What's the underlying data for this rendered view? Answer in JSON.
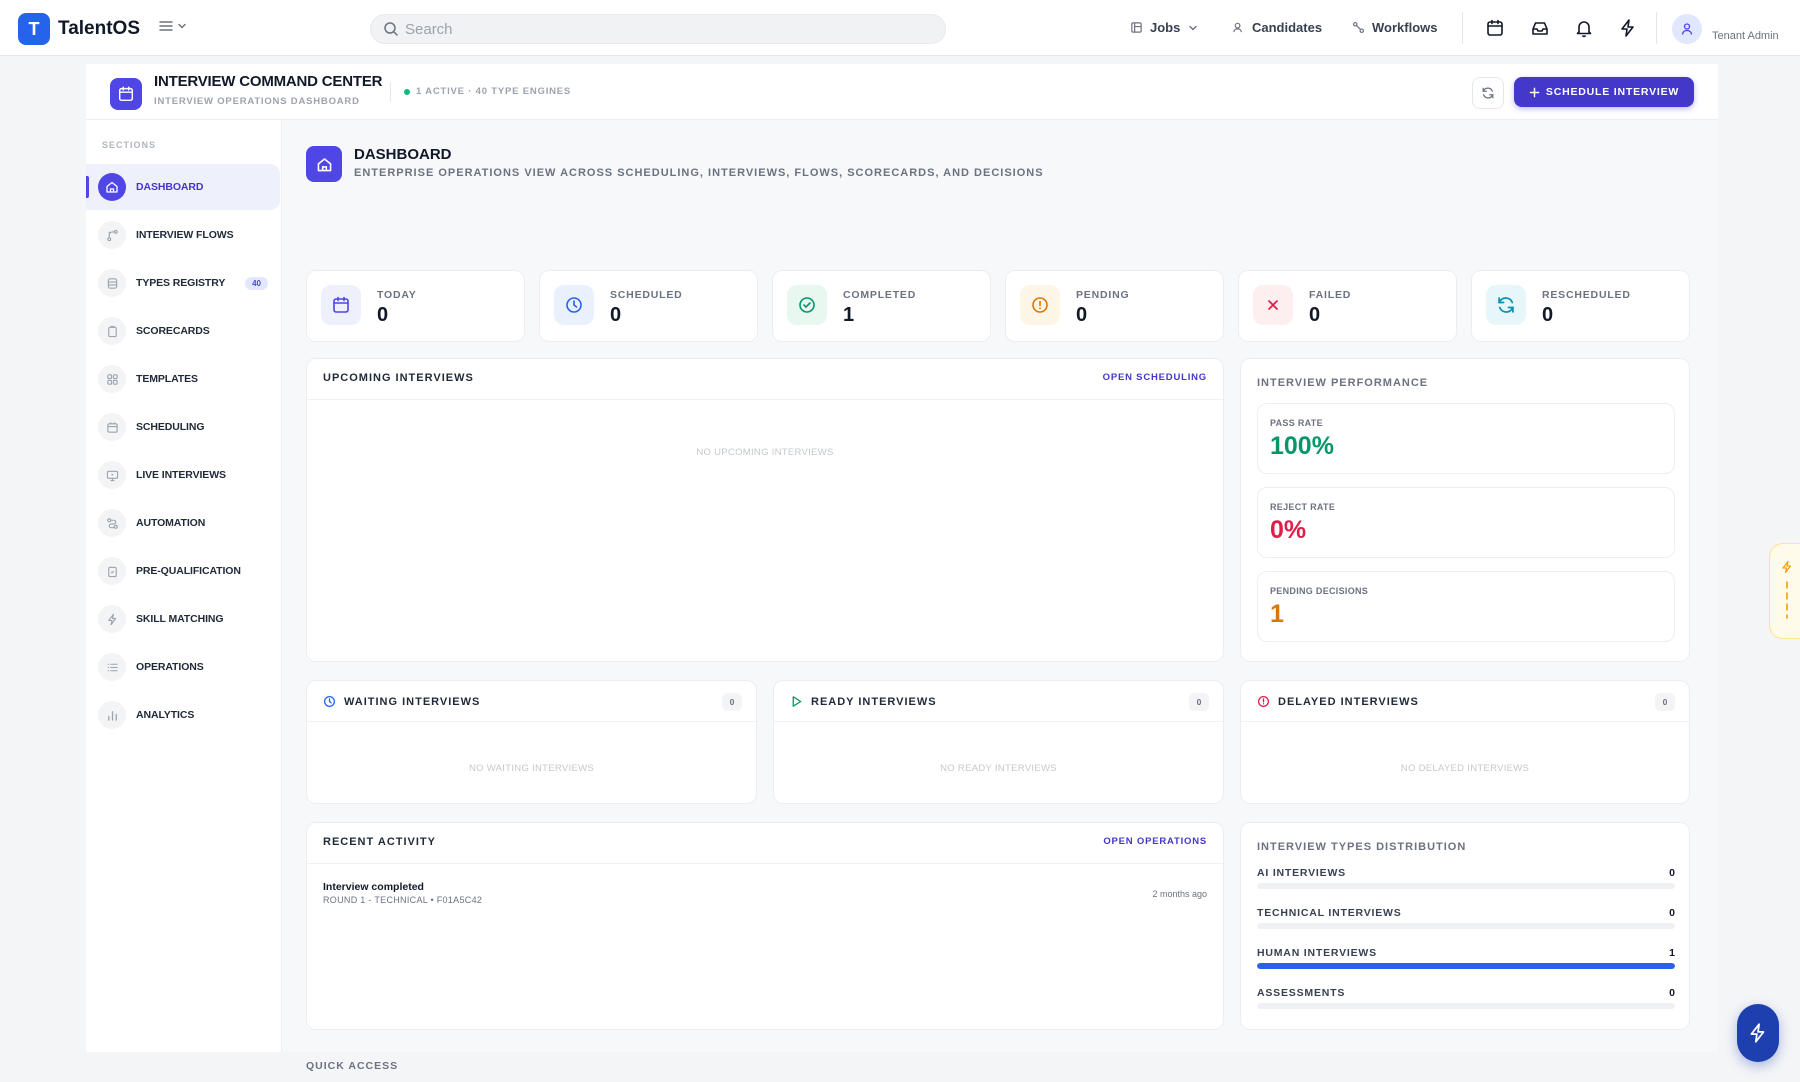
{
  "app": {
    "logo_letter": "T",
    "name": "TalentOS"
  },
  "search": {
    "placeholder": "Search"
  },
  "nav": {
    "jobs": "Jobs",
    "candidates": "Candidates",
    "workflows": "Workflows"
  },
  "user": {
    "name": "Tenant Admin"
  },
  "header": {
    "title": "INTERVIEW COMMAND CENTER",
    "subtitle": "INTERVIEW OPERATIONS DASHBOARD",
    "status": "1 ACTIVE · 40 TYPE ENGINES",
    "primary_button": "SCHEDULE INTERVIEW"
  },
  "sidebar": {
    "section_label": "SECTIONS",
    "items": [
      {
        "label": "DASHBOARD",
        "icon": "home-icon"
      },
      {
        "label": "INTERVIEW FLOWS",
        "icon": "flow-icon"
      },
      {
        "label": "TYPES REGISTRY",
        "icon": "database-icon",
        "badge": "40"
      },
      {
        "label": "SCORECARDS",
        "icon": "clipboard-icon"
      },
      {
        "label": "TEMPLATES",
        "icon": "grid-icon"
      },
      {
        "label": "SCHEDULING",
        "icon": "calendar-icon"
      },
      {
        "label": "LIVE INTERVIEWS",
        "icon": "monitor-icon"
      },
      {
        "label": "AUTOMATION",
        "icon": "route-icon"
      },
      {
        "label": "PRE-QUALIFICATION",
        "icon": "clipboard-check-icon"
      },
      {
        "label": "SKILL MATCHING",
        "icon": "bolt-icon"
      },
      {
        "label": "OPERATIONS",
        "icon": "list-icon"
      },
      {
        "label": "ANALYTICS",
        "icon": "bar-chart-icon"
      }
    ]
  },
  "dashboard": {
    "title": "DASHBOARD",
    "subtitle": "ENTERPRISE OPERATIONS VIEW ACROSS SCHEDULING, INTERVIEWS, FLOWS, SCORECARDS, AND DECISIONS"
  },
  "stats": [
    {
      "label": "TODAY",
      "value": "0",
      "icon": "calendar-icon",
      "color": "#4f46e5",
      "bg": "#eef0fb"
    },
    {
      "label": "SCHEDULED",
      "value": "0",
      "icon": "clock-icon",
      "color": "#2563eb",
      "bg": "#eaf1fe"
    },
    {
      "label": "COMPLETED",
      "value": "1",
      "icon": "check-circle-icon",
      "color": "#059669",
      "bg": "#e8f7f0"
    },
    {
      "label": "PENDING",
      "value": "0",
      "icon": "alert-circle-icon",
      "color": "#d97706",
      "bg": "#fdf5e6"
    },
    {
      "label": "FAILED",
      "value": "0",
      "icon": "x-icon",
      "color": "#e11d48",
      "bg": "#fdeef0"
    },
    {
      "label": "RESCHEDULED",
      "value": "0",
      "icon": "refresh-icon",
      "color": "#0891b2",
      "bg": "#e7f6f9"
    }
  ],
  "upcoming": {
    "title": "UPCOMING INTERVIEWS",
    "link": "OPEN SCHEDULING",
    "empty": "NO UPCOMING INTERVIEWS"
  },
  "performance": {
    "title": "INTERVIEW PERFORMANCE",
    "metrics": [
      {
        "label": "PASS RATE",
        "value": "100%",
        "color": "#059669"
      },
      {
        "label": "REJECT RATE",
        "value": "0%",
        "color": "#e11d48"
      },
      {
        "label": "PENDING DECISIONS",
        "value": "1",
        "color": "#d97706"
      }
    ]
  },
  "queues": [
    {
      "title": "WAITING INTERVIEWS",
      "count": "0",
      "empty": "NO WAITING INTERVIEWS",
      "icon": "clock-icon",
      "color": "#2563eb"
    },
    {
      "title": "READY INTERVIEWS",
      "count": "0",
      "empty": "NO READY INTERVIEWS",
      "icon": "play-icon",
      "color": "#059669"
    },
    {
      "title": "DELAYED INTERVIEWS",
      "count": "0",
      "empty": "NO DELAYED INTERVIEWS",
      "icon": "alert-circle-icon",
      "color": "#e11d48"
    }
  ],
  "activity": {
    "title": "RECENT ACTIVITY",
    "link": "OPEN OPERATIONS",
    "items": [
      {
        "title": "Interview completed",
        "subtitle": "ROUND 1 - TECHNICAL • F01A5C42",
        "time": "2 months ago"
      }
    ]
  },
  "distribution": {
    "title": "INTERVIEW TYPES DISTRIBUTION",
    "items": [
      {
        "label": "AI INTERVIEWS",
        "value": "0",
        "fraction": 0
      },
      {
        "label": "TECHNICAL INTERVIEWS",
        "value": "0",
        "fraction": 0
      },
      {
        "label": "HUMAN INTERVIEWS",
        "value": "1",
        "fraction": 1
      },
      {
        "label": "ASSESSMENTS",
        "value": "0",
        "fraction": 0
      }
    ]
  },
  "quick_access": {
    "title": "QUICK ACCESS"
  }
}
